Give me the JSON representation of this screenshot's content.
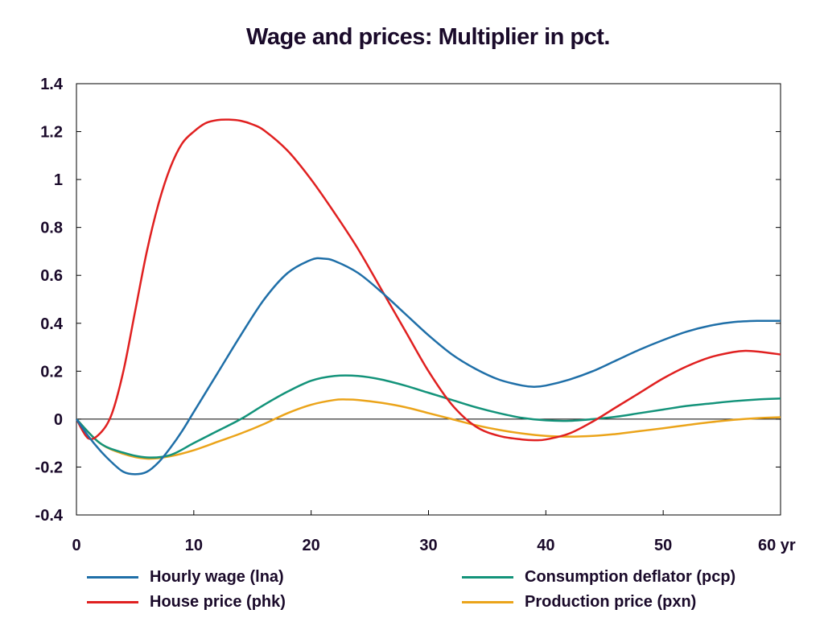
{
  "chart_data": {
    "type": "line",
    "title": "Wage and prices: Multiplier in pct.",
    "x_unit": "yr",
    "xlim": [
      0,
      60
    ],
    "ylim": [
      -0.4,
      1.4
    ],
    "x_ticks": [
      0,
      10,
      20,
      30,
      40,
      50,
      60
    ],
    "x_tick_labels": [
      "0",
      "10",
      "20",
      "30",
      "40",
      "50",
      "60 yr"
    ],
    "y_ticks": [
      -0.4,
      -0.2,
      0,
      0.2,
      0.4,
      0.6,
      0.8,
      1,
      1.2,
      1.4
    ],
    "y_tick_labels": [
      "-0.4",
      "-0.2",
      "0",
      "0.2",
      "0.4",
      "0.6",
      "0.8",
      "1",
      "1.2",
      "1.4"
    ],
    "zero_line": true,
    "grid": false,
    "legend_position": "bottom",
    "series": [
      {
        "name": "Hourly wage (lna)",
        "color": "#1f6fa8",
        "x": [
          0,
          1,
          2,
          3,
          4,
          5,
          6,
          7,
          8,
          9,
          10,
          12,
          14,
          16,
          18,
          20,
          21,
          22,
          24,
          26,
          28,
          30,
          32,
          34,
          36,
          38,
          39,
          40,
          42,
          44,
          46,
          48,
          50,
          52,
          54,
          56,
          58,
          60
        ],
        "y": [
          0,
          -0.07,
          -0.13,
          -0.18,
          -0.22,
          -0.23,
          -0.22,
          -0.18,
          -0.12,
          -0.05,
          0.03,
          0.19,
          0.35,
          0.5,
          0.61,
          0.665,
          0.67,
          0.66,
          0.61,
          0.53,
          0.44,
          0.35,
          0.27,
          0.21,
          0.165,
          0.14,
          0.135,
          0.14,
          0.165,
          0.2,
          0.245,
          0.29,
          0.33,
          0.365,
          0.39,
          0.405,
          0.41,
          0.41
        ]
      },
      {
        "name": "House price (phk)",
        "color": "#e02020",
        "x": [
          0,
          1,
          2,
          3,
          4,
          5,
          6,
          7,
          8,
          9,
          10,
          11,
          12,
          13,
          14,
          15,
          16,
          18,
          20,
          22,
          24,
          26,
          28,
          30,
          32,
          34,
          36,
          38,
          39,
          40,
          42,
          44,
          46,
          48,
          50,
          52,
          54,
          56,
          57,
          58,
          60
        ],
        "y": [
          0,
          -0.08,
          -0.06,
          0.02,
          0.2,
          0.45,
          0.7,
          0.9,
          1.05,
          1.15,
          1.2,
          1.235,
          1.248,
          1.25,
          1.245,
          1.23,
          1.205,
          1.12,
          1.0,
          0.86,
          0.71,
          0.54,
          0.37,
          0.2,
          0.06,
          -0.03,
          -0.07,
          -0.085,
          -0.088,
          -0.085,
          -0.06,
          -0.01,
          0.05,
          0.11,
          0.17,
          0.22,
          0.258,
          0.28,
          0.285,
          0.282,
          0.27
        ]
      },
      {
        "name": "Consumption deflator (pcp)",
        "color": "#13937a",
        "x": [
          0,
          2,
          4,
          6,
          8,
          10,
          12,
          14,
          16,
          18,
          20,
          22,
          24,
          26,
          28,
          30,
          32,
          34,
          36,
          38,
          40,
          42,
          44,
          46,
          48,
          50,
          52,
          54,
          56,
          58,
          60
        ],
        "y": [
          0,
          -0.1,
          -0.14,
          -0.16,
          -0.15,
          -0.1,
          -0.05,
          0.0,
          0.06,
          0.115,
          0.16,
          0.18,
          0.18,
          0.165,
          0.14,
          0.11,
          0.08,
          0.05,
          0.025,
          0.005,
          -0.005,
          -0.007,
          0.0,
          0.01,
          0.025,
          0.04,
          0.055,
          0.065,
          0.075,
          0.082,
          0.086
        ]
      },
      {
        "name": "Production price (pxn)",
        "color": "#eba41a",
        "x": [
          0,
          2,
          4,
          6,
          8,
          10,
          12,
          14,
          16,
          18,
          20,
          22,
          23,
          24,
          26,
          28,
          30,
          32,
          34,
          36,
          38,
          40,
          42,
          44,
          46,
          48,
          50,
          52,
          54,
          56,
          58,
          60
        ],
        "y": [
          0,
          -0.1,
          -0.145,
          -0.165,
          -0.155,
          -0.13,
          -0.095,
          -0.06,
          -0.02,
          0.025,
          0.06,
          0.08,
          0.082,
          0.08,
          0.068,
          0.05,
          0.025,
          0.0,
          -0.025,
          -0.045,
          -0.06,
          -0.07,
          -0.073,
          -0.07,
          -0.062,
          -0.05,
          -0.038,
          -0.025,
          -0.013,
          -0.003,
          0.004,
          0.008
        ]
      }
    ]
  }
}
